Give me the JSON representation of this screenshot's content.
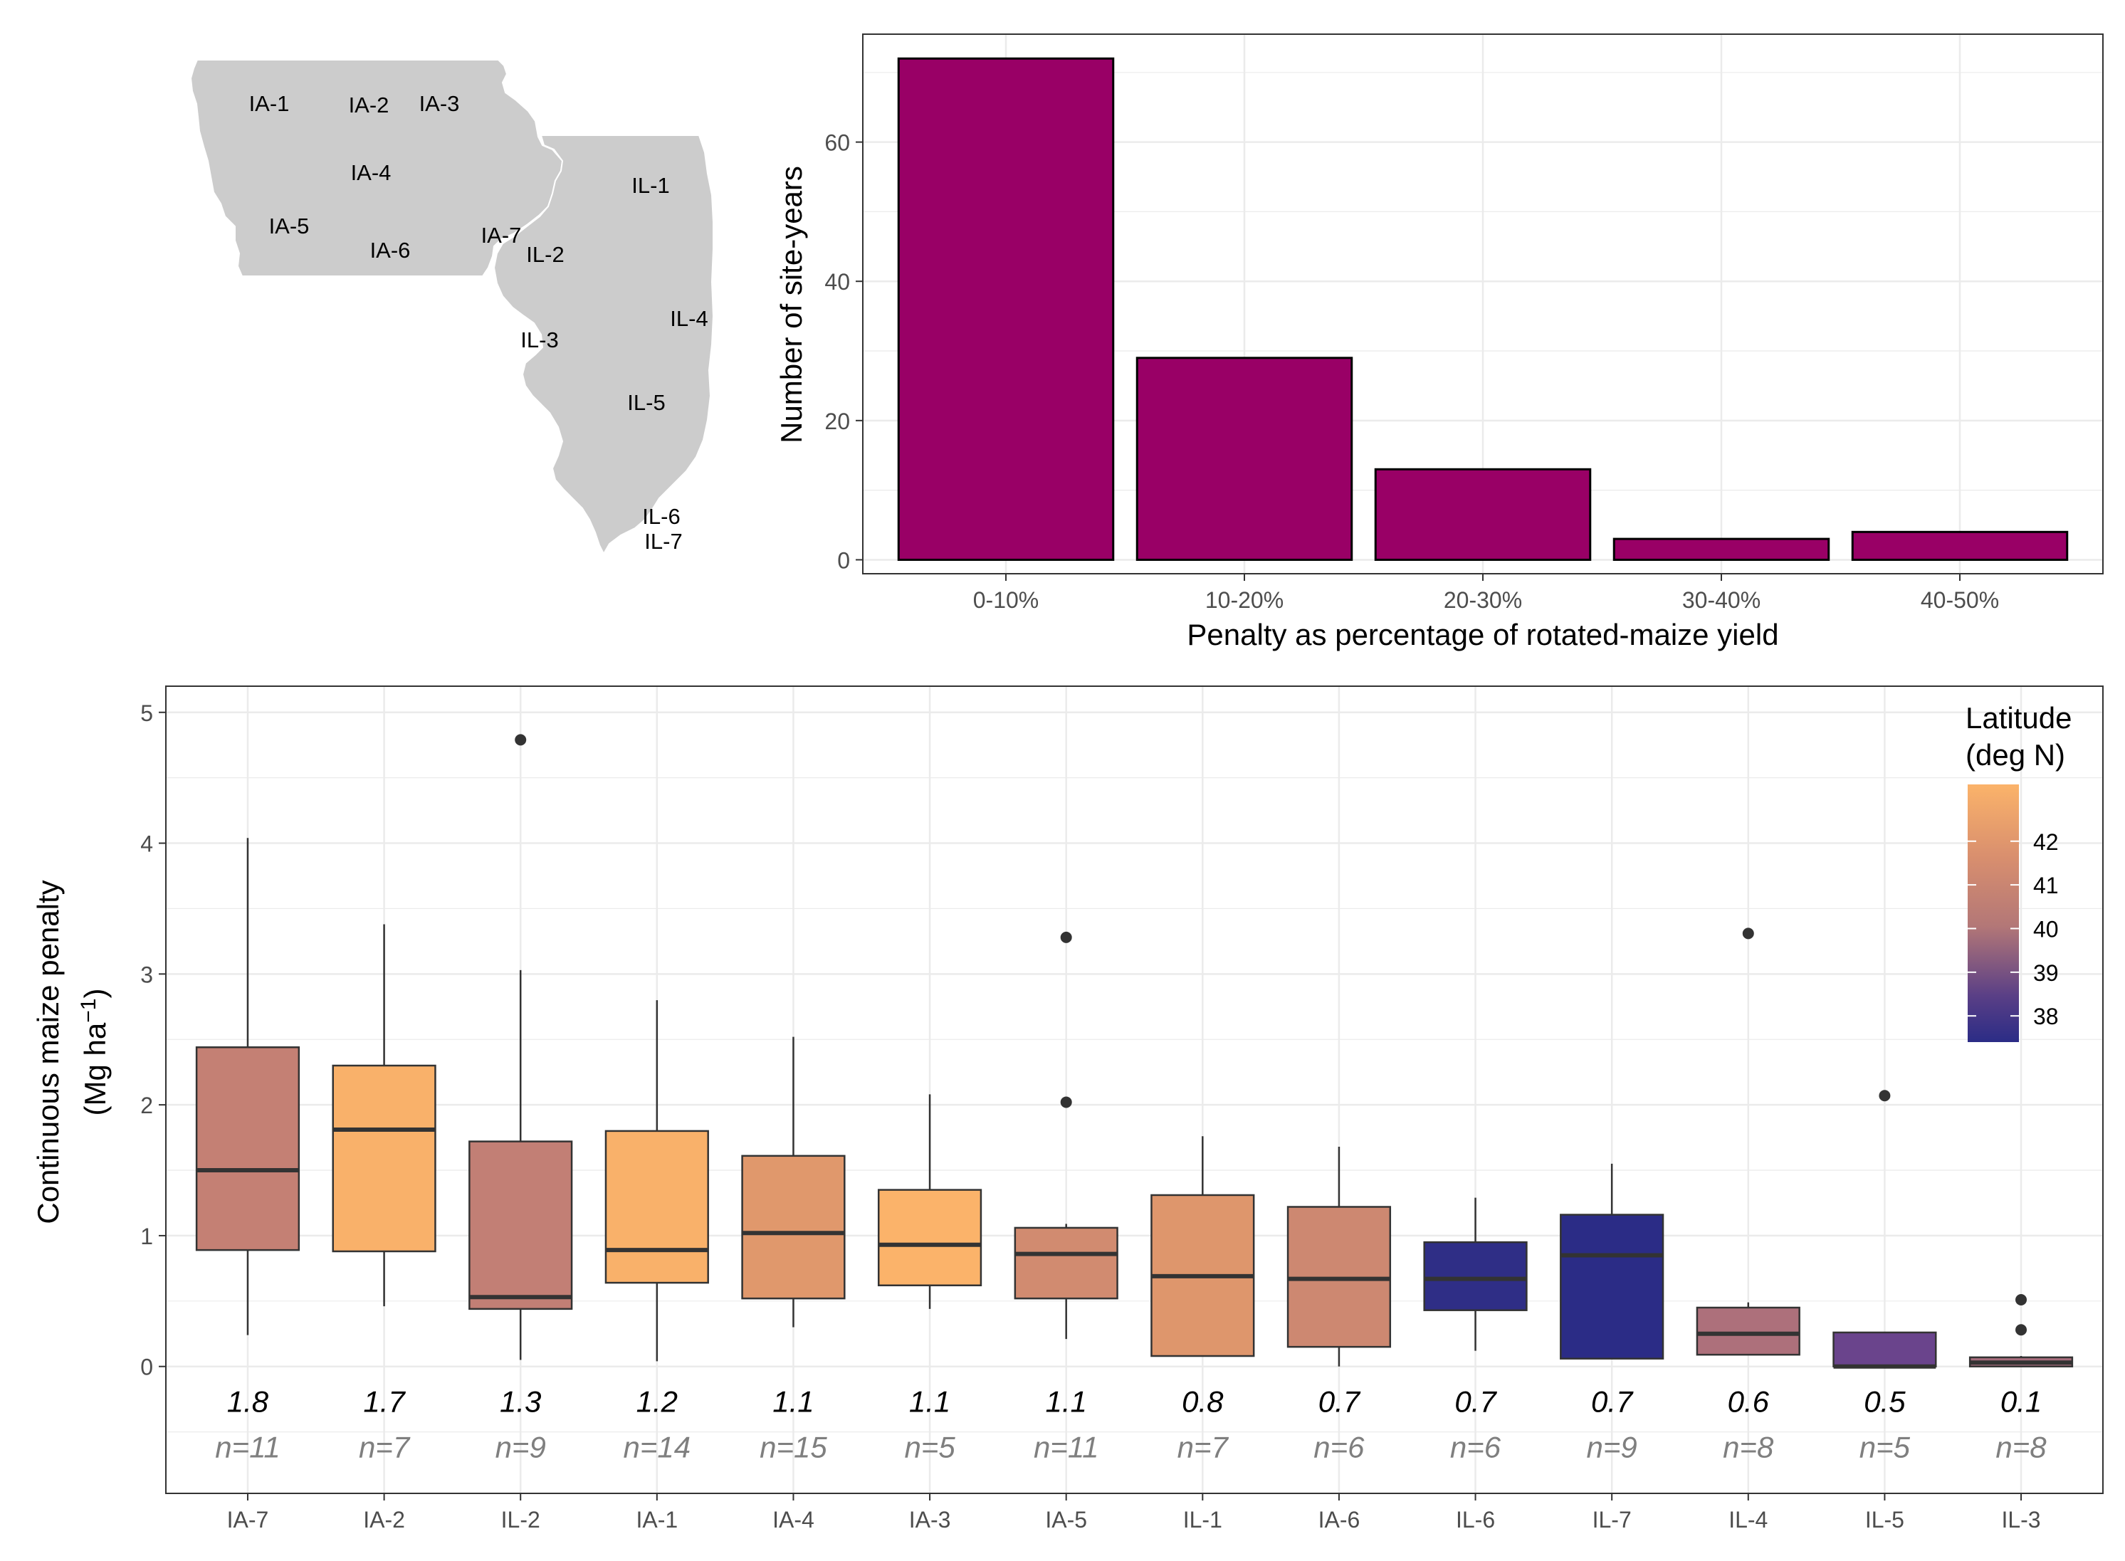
{
  "colors": {
    "bar_fill": "#990066",
    "map_fill": "#cccccc",
    "grid": "#ebebeb",
    "panel_border": "#333333",
    "tick_text": "#4d4d4d",
    "n_text": "#7f7f7f",
    "point": "#333333",
    "lat_low": "#2b2c86",
    "lat_mid": "#c27d74",
    "lat_high": "#fbb36a"
  },
  "map": {
    "icon": "iowa-illinois-map",
    "labels": [
      "IA-1",
      "IA-2",
      "IA-3",
      "IA-4",
      "IA-5",
      "IA-6",
      "IA-7",
      "IL-1",
      "IL-2",
      "IL-3",
      "IL-4",
      "IL-5",
      "IL-6",
      "IL-7"
    ]
  },
  "chart_data": [
    {
      "type": "bar",
      "title": "",
      "xlabel": "Penalty as percentage of rotated-maize yield",
      "ylabel": "Number of site-years",
      "categories": [
        "0-10%",
        "10-20%",
        "20-30%",
        "30-40%",
        "40-50%"
      ],
      "values": [
        72,
        29,
        13,
        3,
        4
      ],
      "ylim": [
        -2,
        75.5
      ],
      "yticks": [
        0,
        20,
        40,
        60
      ],
      "ytick_labels": [
        "0",
        "20",
        "40",
        "60"
      ],
      "grid": true,
      "legend": "none"
    },
    {
      "type": "box",
      "title": "",
      "xlabel": "",
      "ylabel_line1": "Continuous maize penalty",
      "ylabel_line2_base": "(Mg  ha",
      "ylabel_line2_sup": "−1",
      "ylabel_line2_end": ")",
      "ylim": [
        -0.97,
        5.2
      ],
      "yticks": [
        0,
        1,
        2,
        3,
        4,
        5
      ],
      "ytick_labels": [
        "0",
        "1",
        "2",
        "3",
        "4",
        "5"
      ],
      "grid": true,
      "legend_position": "top-right",
      "legend_title_line1": "Latitude",
      "legend_title_line2": "(deg N)",
      "legend_ticks": [
        42,
        41,
        40,
        39,
        38
      ],
      "legend_tick_labels": [
        "42",
        "41",
        "40",
        "39",
        "38"
      ],
      "legend_range": [
        37.4,
        43.3
      ],
      "sites": [
        {
          "site": "IA-7",
          "q1": 0.89,
          "median": 1.5,
          "q3": 2.44,
          "whisker_low": 0.24,
          "whisker_high": 4.04,
          "outliers": [],
          "mean_label": "1.8",
          "n_label": "n=11",
          "latitude": 40.7
        },
        {
          "site": "IA-2",
          "q1": 0.88,
          "median": 1.81,
          "q3": 2.3,
          "whisker_low": 0.46,
          "whisker_high": 3.38,
          "outliers": [],
          "mean_label": "1.7",
          "n_label": "n=7",
          "latitude": 43.2
        },
        {
          "site": "IL-2",
          "q1": 0.44,
          "median": 0.53,
          "q3": 1.72,
          "whisker_low": 0.05,
          "whisker_high": 3.03,
          "outliers": [
            4.79
          ],
          "mean_label": "1.3",
          "n_label": "n=9",
          "latitude": 40.6
        },
        {
          "site": "IA-1",
          "q1": 0.64,
          "median": 0.89,
          "q3": 1.8,
          "whisker_low": 0.04,
          "whisker_high": 2.8,
          "outliers": [],
          "mean_label": "1.2",
          "n_label": "n=14",
          "latitude": 43.2
        },
        {
          "site": "IA-4",
          "q1": 0.52,
          "median": 1.02,
          "q3": 1.61,
          "whisker_low": 0.3,
          "whisker_high": 2.52,
          "outliers": [],
          "mean_label": "1.1",
          "n_label": "n=15",
          "latitude": 42.0
        },
        {
          "site": "IA-3",
          "q1": 0.62,
          "median": 0.93,
          "q3": 1.35,
          "whisker_low": 0.44,
          "whisker_high": 2.08,
          "outliers": [],
          "mean_label": "1.1",
          "n_label": "n=5",
          "latitude": 43.3
        },
        {
          "site": "IA-5",
          "q1": 0.52,
          "median": 0.86,
          "q3": 1.06,
          "whisker_low": 0.21,
          "whisker_high": 1.09,
          "outliers": [
            2.02,
            3.28
          ],
          "mean_label": "1.1",
          "n_label": "n=11",
          "latitude": 41.3
        },
        {
          "site": "IL-1",
          "q1": 0.08,
          "median": 0.69,
          "q3": 1.31,
          "whisker_low": 0.08,
          "whisker_high": 1.76,
          "outliers": [],
          "mean_label": "0.8",
          "n_label": "n=7",
          "latitude": 41.9
        },
        {
          "site": "IA-6",
          "q1": 0.15,
          "median": 0.67,
          "q3": 1.22,
          "whisker_low": 0.0,
          "whisker_high": 1.68,
          "outliers": [],
          "mean_label": "0.7",
          "n_label": "n=6",
          "latitude": 41.1
        },
        {
          "site": "IL-6",
          "q1": 0.43,
          "median": 0.67,
          "q3": 0.95,
          "whisker_low": 0.12,
          "whisker_high": 1.29,
          "outliers": [],
          "mean_label": "0.7",
          "n_label": "n=6",
          "latitude": 37.5
        },
        {
          "site": "IL-7",
          "q1": 0.06,
          "median": 0.85,
          "q3": 1.16,
          "whisker_low": 0.06,
          "whisker_high": 1.55,
          "outliers": [],
          "mean_label": "0.7",
          "n_label": "n=9",
          "latitude": 37.4
        },
        {
          "site": "IL-4",
          "q1": 0.09,
          "median": 0.25,
          "q3": 0.45,
          "whisker_low": 0.09,
          "whisker_high": 0.49,
          "outliers": [
            3.31
          ],
          "mean_label": "0.6",
          "n_label": "n=8",
          "latitude": 40.1
        },
        {
          "site": "IL-5",
          "q1": 0.0,
          "median": 0.0,
          "q3": 0.26,
          "whisker_low": 0.0,
          "whisker_high": 0.26,
          "outliers": [
            2.07
          ],
          "mean_label": "0.5",
          "n_label": "n=5",
          "latitude": 38.9
        },
        {
          "site": "IL-3",
          "q1": 0.0,
          "median": 0.03,
          "q3": 0.07,
          "whisker_low": 0.0,
          "whisker_high": 0.08,
          "outliers": [
            0.28,
            0.51
          ],
          "mean_label": "0.1",
          "n_label": "n=8",
          "latitude": 40.0
        }
      ]
    }
  ]
}
